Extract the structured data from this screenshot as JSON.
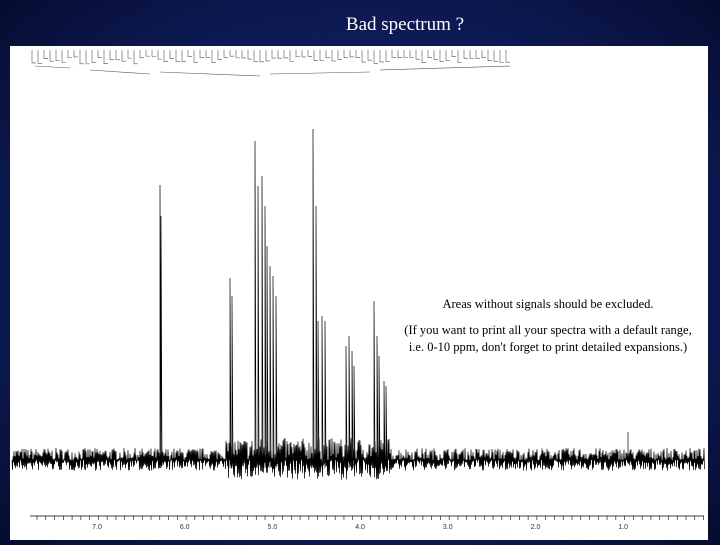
{
  "title": "Bad spectrum ?",
  "annotation": {
    "line1": "Areas without signals should be excluded.",
    "line2": "(If you want to print all your spectra with a default range, i.e. 0-10 ppm, don't forget to print detailed expansions.)"
  },
  "axis": {
    "tick_labels": [
      "7.0",
      "6.0",
      "5.0",
      "4.0",
      "3.0",
      "2.0",
      "1.0"
    ]
  }
}
